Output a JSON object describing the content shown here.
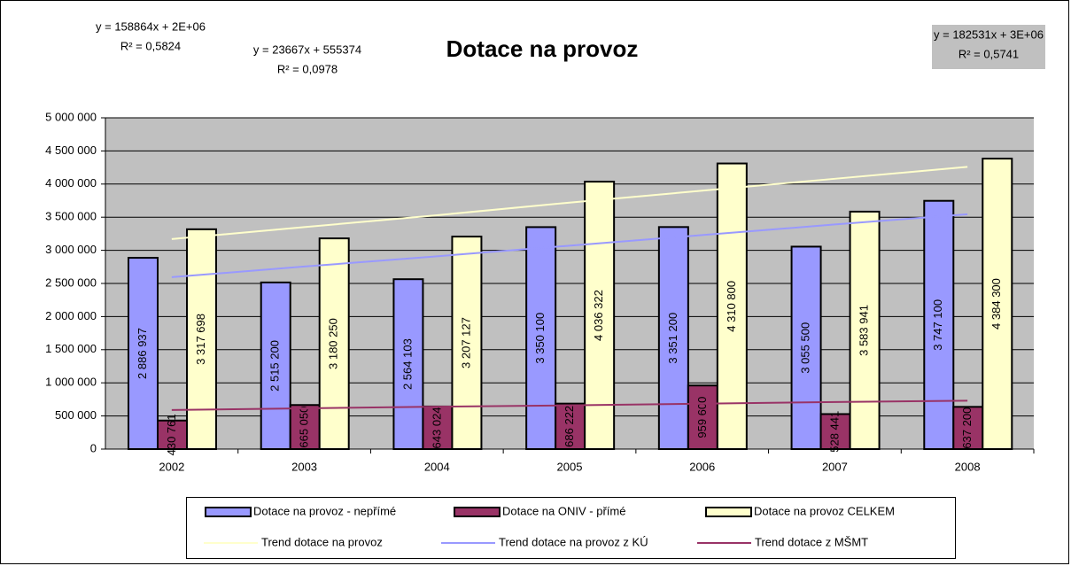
{
  "chart_data": {
    "type": "bar",
    "title": "Dotace na provoz",
    "categories": [
      "2002",
      "2003",
      "2004",
      "2005",
      "2006",
      "2007",
      "2008"
    ],
    "series": [
      {
        "name": "Dotace na provoz - nepřímé",
        "color": "#9999ff",
        "values": [
          2886937,
          2515200,
          2564103,
          3350100,
          3351200,
          3055500,
          3747100
        ],
        "value_labels": [
          "2 886 937",
          "2 515 200",
          "2 564 103",
          "3 350 100",
          "3 351 200",
          "3 055 500",
          "3 747 100"
        ]
      },
      {
        "name": "Dotace na ONIV - přímé",
        "color": "#993366",
        "values": [
          430761,
          665050,
          643024,
          686222,
          959600,
          528441,
          637200
        ],
        "value_labels": [
          "430 761",
          "665 050",
          "643 024",
          "686 222",
          "959 600",
          "528 441",
          "637 200"
        ]
      },
      {
        "name": "Dotace na provoz CELKEM",
        "color": "#ffffcc",
        "values": [
          3317698,
          3180250,
          3207127,
          4036322,
          4310800,
          3583941,
          4384300
        ],
        "value_labels": [
          "3 317 698",
          "3 180 250",
          "3 207 127",
          "4 036 322",
          "4 310 800",
          "3 583 941",
          "4 384 300"
        ]
      }
    ],
    "trends": [
      {
        "name": "Trend dotace na provoz",
        "color": "#ffffcc",
        "values": [
          3170000,
          3350000,
          3530000,
          3720000,
          3900000,
          4080000,
          4260000
        ]
      },
      {
        "name": "Trend dotace na provoz z KÚ",
        "color": "#9999ff",
        "values": [
          2595000,
          2755000,
          2910000,
          3070000,
          3230000,
          3390000,
          3545000
        ]
      },
      {
        "name": "Trend dotace z MŠMT",
        "color": "#993366",
        "values": [
          590000,
          615000,
          640000,
          660000,
          685000,
          710000,
          730000
        ]
      }
    ],
    "annotations": [
      {
        "equation": "y = 158864x + 2E+06",
        "r2": "R² = 0,5824",
        "color": "#9999ff"
      },
      {
        "equation": "y = 23667x + 555374",
        "r2": "R² = 0,0978",
        "color": "#993366"
      },
      {
        "equation": "y = 182531x + 3E+06",
        "r2": "R² = 0,5741",
        "color": "#ffffcc"
      }
    ],
    "ylim": [
      0,
      5000000
    ],
    "yticks": [
      0,
      {
        "value": 500000,
        "label": "500 000"
      },
      {
        "value": 1000000,
        "label": "1 000 000"
      },
      {
        "value": 1500000,
        "label": "1 500 000"
      },
      {
        "value": 2000000,
        "label": "2 000 000"
      },
      {
        "value": 2500000,
        "label": "2 500 000"
      },
      {
        "value": 3000000,
        "label": "3 000 000"
      },
      {
        "value": 3500000,
        "label": "3 500 000"
      },
      {
        "value": 4000000,
        "label": "4 000 000"
      },
      {
        "value": 4500000,
        "label": "4 500 000"
      },
      {
        "value": 5000000,
        "label": "5 000 000"
      }
    ],
    "grid": true,
    "plot_background": "#c0c0c0"
  }
}
